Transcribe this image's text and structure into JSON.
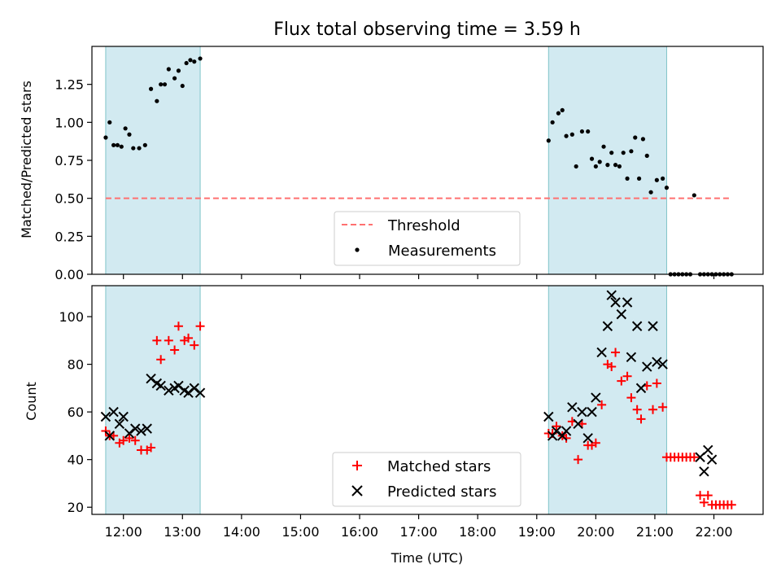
{
  "colors": {
    "band": "#add8e6",
    "threshold": "#ff7070",
    "measure": "#000000",
    "matched": "#ff0000",
    "predicted": "#000000"
  },
  "chart_data": [
    {
      "type": "scatter",
      "title": "Flux total observing time = 3.59 h",
      "xlabel": "",
      "ylabel": "Matched/Predicted stars",
      "xlim": [
        "11:28",
        "22:50"
      ],
      "ylim": [
        0,
        1.5
      ],
      "yticks": [
        0.0,
        0.25,
        0.5,
        0.75,
        1.0,
        1.25
      ],
      "ytick_labels": [
        "0.00",
        "0.25",
        "0.50",
        "0.75",
        "1.00",
        "1.25"
      ],
      "shaded_spans": [
        [
          "11:42",
          "13:18"
        ],
        [
          "19:12",
          "21:12"
        ]
      ],
      "threshold": {
        "name": "Threshold",
        "y": 0.5,
        "x": [
          "11:42",
          "22:18"
        ]
      },
      "legend_position": "lower center",
      "series": [
        {
          "name": "Measurements",
          "marker": "dot",
          "x": [
            "11:42",
            "11:46",
            "11:50",
            "11:54",
            "11:58",
            "12:02",
            "12:06",
            "12:10",
            "12:16",
            "12:22",
            "12:28",
            "12:34",
            "12:38",
            "12:42",
            "12:46",
            "12:52",
            "12:56",
            "13:00",
            "13:04",
            "13:08",
            "13:12",
            "13:18",
            "19:12",
            "19:16",
            "19:22",
            "19:26",
            "19:30",
            "19:36",
            "19:40",
            "19:46",
            "19:52",
            "19:56",
            "20:00",
            "20:04",
            "20:08",
            "20:12",
            "20:16",
            "20:20",
            "20:24",
            "20:28",
            "20:32",
            "20:36",
            "20:40",
            "20:44",
            "20:48",
            "20:52",
            "20:56",
            "21:02",
            "21:08",
            "21:12",
            "21:16",
            "21:20",
            "21:24",
            "21:28",
            "21:32",
            "21:36",
            "21:40",
            "21:46",
            "21:50",
            "21:54",
            "21:58",
            "22:02",
            "22:06",
            "22:10",
            "22:14",
            "22:18"
          ],
          "y": [
            0.9,
            1.0,
            0.85,
            0.85,
            0.84,
            0.96,
            0.92,
            0.83,
            0.83,
            0.85,
            1.22,
            1.14,
            1.25,
            1.25,
            1.35,
            1.29,
            1.34,
            1.24,
            1.39,
            1.41,
            1.4,
            1.42,
            0.88,
            1.0,
            1.06,
            1.08,
            0.91,
            0.92,
            0.71,
            0.94,
            0.94,
            0.76,
            0.71,
            0.74,
            0.84,
            0.72,
            0.8,
            0.72,
            0.71,
            0.8,
            0.63,
            0.81,
            0.9,
            0.63,
            0.89,
            0.78,
            0.54,
            0.62,
            0.63,
            0.57,
            0,
            0,
            0,
            0,
            0,
            0,
            0.52,
            0,
            0,
            0,
            0,
            0,
            0,
            0,
            0,
            0
          ]
        }
      ]
    },
    {
      "type": "scatter",
      "title": "",
      "xlabel": "Time (UTC)",
      "ylabel": "Count",
      "xlim": [
        "11:28",
        "22:50"
      ],
      "ylim": [
        17,
        113
      ],
      "yticks": [
        20,
        40,
        60,
        80,
        100
      ],
      "ytick_labels": [
        "20",
        "40",
        "60",
        "80",
        "100"
      ],
      "xticks": [
        "12:00",
        "13:00",
        "14:00",
        "15:00",
        "16:00",
        "17:00",
        "18:00",
        "19:00",
        "20:00",
        "21:00",
        "22:00"
      ],
      "shaded_spans": [
        [
          "11:42",
          "13:18"
        ],
        [
          "19:12",
          "21:12"
        ]
      ],
      "legend_position": "lower center",
      "series": [
        {
          "name": "Matched stars",
          "marker": "plus",
          "x": [
            "11:42",
            "11:46",
            "11:50",
            "11:56",
            "12:00",
            "12:06",
            "12:12",
            "12:18",
            "12:24",
            "12:28",
            "12:34",
            "12:38",
            "12:46",
            "12:52",
            "12:56",
            "13:02",
            "13:06",
            "13:12",
            "13:18",
            "19:12",
            "19:16",
            "19:20",
            "19:26",
            "19:30",
            "19:36",
            "19:42",
            "19:46",
            "19:52",
            "19:56",
            "20:00",
            "20:06",
            "20:12",
            "20:16",
            "20:20",
            "20:26",
            "20:32",
            "20:36",
            "20:42",
            "20:46",
            "20:52",
            "20:58",
            "21:02",
            "21:08",
            "21:12",
            "21:16",
            "21:20",
            "21:24",
            "21:28",
            "21:32",
            "21:36",
            "21:40",
            "21:46",
            "21:50",
            "21:54",
            "21:58",
            "22:02",
            "22:06",
            "22:10",
            "22:14",
            "22:18"
          ],
          "y": [
            52,
            50,
            50,
            47,
            48,
            49,
            48,
            44,
            44,
            45,
            90,
            82,
            90,
            86,
            96,
            90,
            91,
            88,
            96,
            51,
            51,
            54,
            50,
            49,
            56,
            40,
            55,
            46,
            46,
            47,
            63,
            80,
            79,
            85,
            73,
            75,
            66,
            61,
            57,
            71,
            61,
            72,
            62,
            41,
            41,
            41,
            41,
            41,
            41,
            41,
            41,
            25,
            22,
            25,
            21,
            21,
            21,
            21,
            21,
            21
          ]
        },
        {
          "name": "Predicted stars",
          "marker": "x",
          "x": [
            "11:42",
            "11:46",
            "11:50",
            "11:56",
            "12:00",
            "12:06",
            "12:12",
            "12:18",
            "12:24",
            "12:28",
            "12:34",
            "12:38",
            "12:46",
            "12:52",
            "12:56",
            "13:02",
            "13:06",
            "13:12",
            "13:18",
            "19:12",
            "19:16",
            "19:20",
            "19:26",
            "19:30",
            "19:36",
            "19:42",
            "19:46",
            "19:52",
            "19:56",
            "20:00",
            "20:06",
            "20:12",
            "20:16",
            "20:20",
            "20:26",
            "20:32",
            "20:36",
            "20:42",
            "20:46",
            "20:52",
            "20:58",
            "21:02",
            "21:08",
            "21:46",
            "21:50",
            "21:54",
            "21:58"
          ],
          "y": [
            58,
            50,
            60,
            55,
            58,
            51,
            53,
            52,
            53,
            74,
            72,
            71,
            69,
            70,
            71,
            69,
            68,
            70,
            68,
            58,
            50,
            52,
            50,
            52,
            62,
            55,
            60,
            49,
            60,
            66,
            85,
            96,
            109,
            106,
            101,
            106,
            83,
            96,
            70,
            79,
            96,
            81,
            80,
            41,
            35,
            44,
            40
          ]
        }
      ]
    }
  ]
}
